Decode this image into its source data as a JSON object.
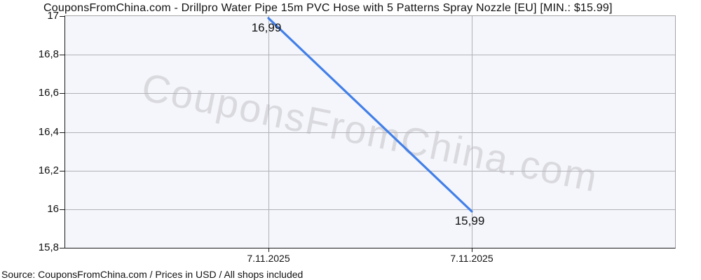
{
  "watermark": "CouponsFromChina.com",
  "footer": "Source: CouponsFromChina.com / Prices in USD / All shops included",
  "chart_data": {
    "type": "line",
    "title": "CouponsFromChina.com - Drillpro Water Pipe 15m PVC Hose with 5 Patterns Spray Nozzle [EU] [MIN.: $15.99]",
    "x": [
      "7.11.2025",
      "7.11.2025"
    ],
    "series": [
      {
        "name": "price-usd",
        "values": [
          16.99,
          15.99
        ]
      }
    ],
    "point_labels": [
      "16,99",
      "15,99"
    ],
    "ylim": [
      15.8,
      17
    ],
    "y_ticks": [
      17,
      16.8,
      16.6,
      16.4,
      16.2,
      16,
      15.8
    ],
    "y_tick_labels": [
      "17",
      "16,8",
      "16,6",
      "16,4",
      "16,2",
      "16",
      "15,8"
    ],
    "xlabel": "",
    "ylabel": "",
    "grid": true,
    "legend": false,
    "colors": {
      "line": "#417fe8",
      "plot_background": "#f4f6fb",
      "gridline": "#b1b1b7",
      "frame": "#a5a5a9",
      "axis": "#1a1a1a",
      "watermark": "#c3c3c8",
      "text": "#111111"
    }
  }
}
